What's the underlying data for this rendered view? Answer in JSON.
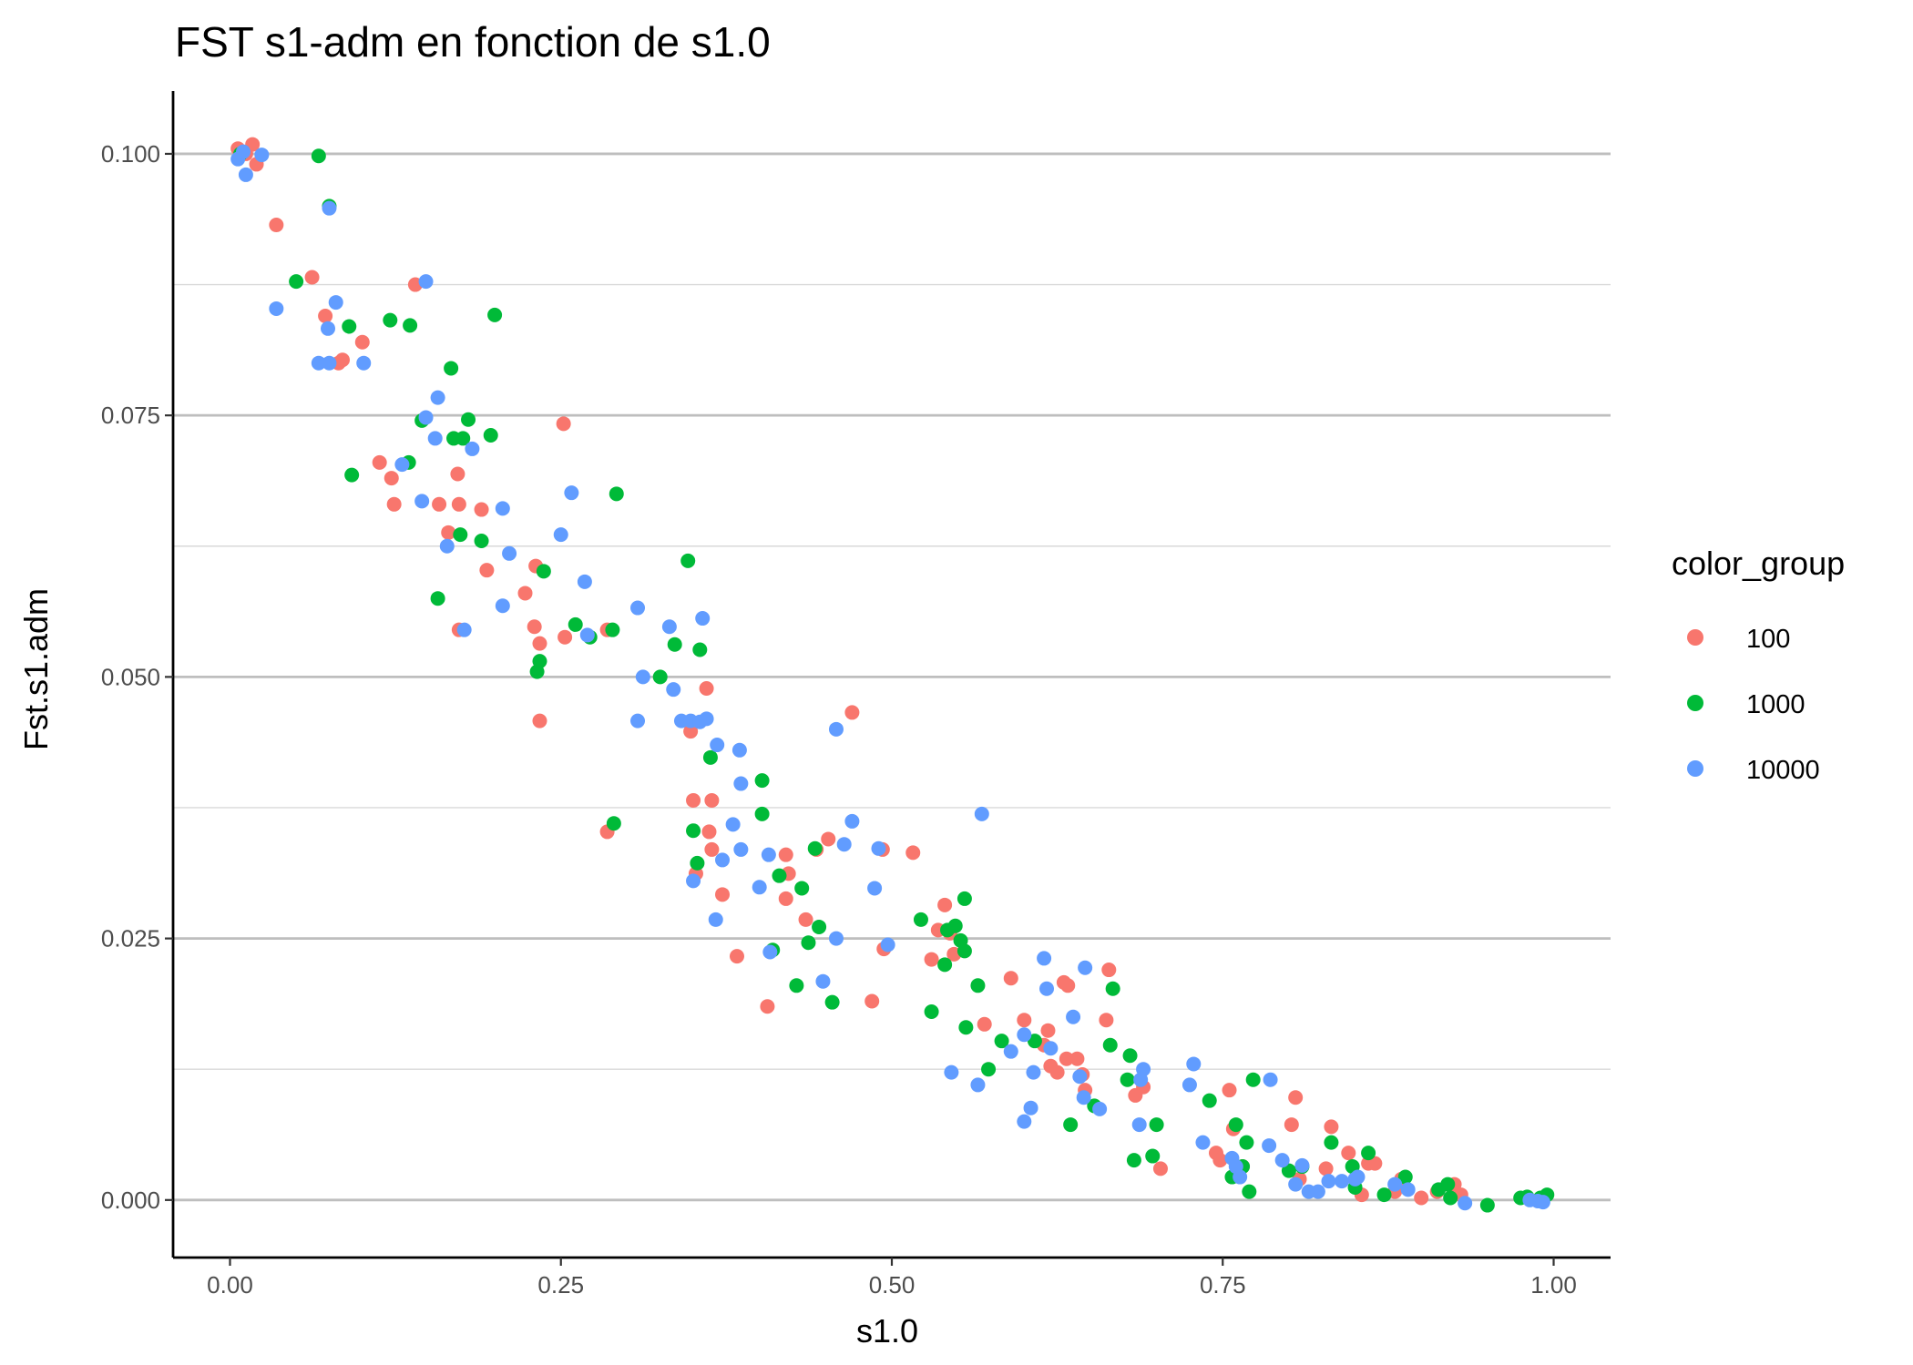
{
  "chart_data": {
    "type": "scatter",
    "title": "FST s1-adm en fonction de s1.0",
    "xlabel": "s1.0",
    "ylabel": "Fst.s1.adm",
    "xlim": [
      -0.043,
      1.043
    ],
    "ylim": [
      -0.0055,
      0.106
    ],
    "x_ticks": [
      0,
      0.25,
      0.5,
      0.75,
      1
    ],
    "x_tick_labels": [
      "0.00",
      "0.25",
      "0.50",
      "0.75",
      "1.00"
    ],
    "y_ticks": [
      0,
      0.025,
      0.05,
      0.075,
      0.1
    ],
    "y_tick_labels": [
      "0.000",
      "0.025",
      "0.050",
      "0.075",
      "0.100"
    ],
    "grid": "horizontal major and minor",
    "legend": {
      "title": "color_group",
      "placement": "right"
    },
    "series": [
      {
        "name": "100",
        "color": "#F8766D",
        "points": [
          [
            0.006,
            0.1005
          ],
          [
            0.012,
            0.1
          ],
          [
            0.017,
            0.1009
          ],
          [
            0.02,
            0.099
          ],
          [
            0.035,
            0.0932
          ],
          [
            0.062,
            0.0882
          ],
          [
            0.072,
            0.0845
          ],
          [
            0.082,
            0.08
          ],
          [
            0.085,
            0.0803
          ],
          [
            0.1,
            0.082
          ],
          [
            0.14,
            0.0875
          ],
          [
            0.113,
            0.0705
          ],
          [
            0.122,
            0.069
          ],
          [
            0.124,
            0.0665
          ],
          [
            0.158,
            0.0665
          ],
          [
            0.165,
            0.0638
          ],
          [
            0.172,
            0.0694
          ],
          [
            0.173,
            0.0665
          ],
          [
            0.173,
            0.0545
          ],
          [
            0.19,
            0.066
          ],
          [
            0.194,
            0.0602
          ],
          [
            0.223,
            0.058
          ],
          [
            0.23,
            0.0548
          ],
          [
            0.231,
            0.0606
          ],
          [
            0.234,
            0.0532
          ],
          [
            0.234,
            0.0458
          ],
          [
            0.252,
            0.0742
          ],
          [
            0.253,
            0.0538
          ],
          [
            0.285,
            0.0545
          ],
          [
            0.285,
            0.0352
          ],
          [
            0.348,
            0.0448
          ],
          [
            0.35,
            0.0382
          ],
          [
            0.352,
            0.0312
          ],
          [
            0.36,
            0.0489
          ],
          [
            0.362,
            0.0352
          ],
          [
            0.364,
            0.0382
          ],
          [
            0.364,
            0.0335
          ],
          [
            0.372,
            0.0292
          ],
          [
            0.383,
            0.0233
          ],
          [
            0.406,
            0.0185
          ],
          [
            0.42,
            0.033
          ],
          [
            0.42,
            0.0288
          ],
          [
            0.422,
            0.0312
          ],
          [
            0.435,
            0.0268
          ],
          [
            0.443,
            0.0335
          ],
          [
            0.452,
            0.0345
          ],
          [
            0.47,
            0.0466
          ],
          [
            0.485,
            0.019
          ],
          [
            0.493,
            0.0335
          ],
          [
            0.494,
            0.024
          ],
          [
            0.516,
            0.0332
          ],
          [
            0.53,
            0.023
          ],
          [
            0.535,
            0.0258
          ],
          [
            0.54,
            0.0282
          ],
          [
            0.544,
            0.0255
          ],
          [
            0.547,
            0.0235
          ],
          [
            0.57,
            0.0168
          ],
          [
            0.59,
            0.0212
          ],
          [
            0.6,
            0.0172
          ],
          [
            0.615,
            0.0148
          ],
          [
            0.618,
            0.0162
          ],
          [
            0.62,
            0.0128
          ],
          [
            0.625,
            0.0122
          ],
          [
            0.63,
            0.0208
          ],
          [
            0.632,
            0.0135
          ],
          [
            0.633,
            0.0205
          ],
          [
            0.64,
            0.0135
          ],
          [
            0.644,
            0.012
          ],
          [
            0.646,
            0.0105
          ],
          [
            0.662,
            0.0172
          ],
          [
            0.664,
            0.022
          ],
          [
            0.684,
            0.01
          ],
          [
            0.69,
            0.0108
          ],
          [
            0.703,
            0.003
          ],
          [
            0.745,
            0.0045
          ],
          [
            0.748,
            0.0038
          ],
          [
            0.755,
            0.0105
          ],
          [
            0.758,
            0.0068
          ],
          [
            0.765,
            0.0032
          ],
          [
            0.802,
            0.0072
          ],
          [
            0.805,
            0.0098
          ],
          [
            0.808,
            0.002
          ],
          [
            0.828,
            0.003
          ],
          [
            0.832,
            0.007
          ],
          [
            0.845,
            0.0045
          ],
          [
            0.855,
            0.0005
          ],
          [
            0.86,
            0.0035
          ],
          [
            0.865,
            0.0035
          ],
          [
            0.88,
            0.0008
          ],
          [
            0.885,
            0.002
          ],
          [
            0.9,
            0.0002
          ],
          [
            0.912,
            0.0008
          ],
          [
            0.925,
            0.0015
          ],
          [
            0.93,
            0.0005
          ]
        ]
      },
      {
        "name": "1000",
        "color": "#00BA38",
        "points": [
          [
            0.008,
            0.1
          ],
          [
            0.067,
            0.0998
          ],
          [
            0.075,
            0.095
          ],
          [
            0.05,
            0.0878
          ],
          [
            0.09,
            0.0835
          ],
          [
            0.121,
            0.0841
          ],
          [
            0.136,
            0.0836
          ],
          [
            0.2,
            0.0846
          ],
          [
            0.167,
            0.0795
          ],
          [
            0.092,
            0.0693
          ],
          [
            0.135,
            0.0705
          ],
          [
            0.145,
            0.0745
          ],
          [
            0.169,
            0.0728
          ],
          [
            0.176,
            0.0728
          ],
          [
            0.18,
            0.0746
          ],
          [
            0.197,
            0.0731
          ],
          [
            0.174,
            0.0636
          ],
          [
            0.19,
            0.063
          ],
          [
            0.157,
            0.0575
          ],
          [
            0.237,
            0.0601
          ],
          [
            0.232,
            0.0505
          ],
          [
            0.234,
            0.0515
          ],
          [
            0.261,
            0.055
          ],
          [
            0.272,
            0.0538
          ],
          [
            0.289,
            0.0545
          ],
          [
            0.292,
            0.0675
          ],
          [
            0.29,
            0.036
          ],
          [
            0.325,
            0.05
          ],
          [
            0.336,
            0.0531
          ],
          [
            0.346,
            0.0611
          ],
          [
            0.355,
            0.0526
          ],
          [
            0.363,
            0.0423
          ],
          [
            0.35,
            0.0353
          ],
          [
            0.353,
            0.0322
          ],
          [
            0.402,
            0.0401
          ],
          [
            0.402,
            0.0369
          ],
          [
            0.41,
            0.0239
          ],
          [
            0.415,
            0.031
          ],
          [
            0.428,
            0.0205
          ],
          [
            0.432,
            0.0298
          ],
          [
            0.437,
            0.0246
          ],
          [
            0.442,
            0.0336
          ],
          [
            0.445,
            0.0261
          ],
          [
            0.455,
            0.0189
          ],
          [
            0.522,
            0.0268
          ],
          [
            0.53,
            0.018
          ],
          [
            0.54,
            0.0225
          ],
          [
            0.542,
            0.0258
          ],
          [
            0.548,
            0.0262
          ],
          [
            0.552,
            0.0248
          ],
          [
            0.555,
            0.0288
          ],
          [
            0.555,
            0.0238
          ],
          [
            0.556,
            0.0165
          ],
          [
            0.565,
            0.0205
          ],
          [
            0.573,
            0.0125
          ],
          [
            0.583,
            0.0152
          ],
          [
            0.608,
            0.0152
          ],
          [
            0.635,
            0.0072
          ],
          [
            0.653,
            0.009
          ],
          [
            0.665,
            0.0148
          ],
          [
            0.667,
            0.0202
          ],
          [
            0.678,
            0.0115
          ],
          [
            0.68,
            0.0138
          ],
          [
            0.683,
            0.0038
          ],
          [
            0.697,
            0.0042
          ],
          [
            0.7,
            0.0072
          ],
          [
            0.74,
            0.0095
          ],
          [
            0.757,
            0.0022
          ],
          [
            0.76,
            0.0072
          ],
          [
            0.765,
            0.0032
          ],
          [
            0.768,
            0.0055
          ],
          [
            0.77,
            0.0008
          ],
          [
            0.773,
            0.0115
          ],
          [
            0.8,
            0.0028
          ],
          [
            0.81,
            0.0032
          ],
          [
            0.832,
            0.0055
          ],
          [
            0.848,
            0.0032
          ],
          [
            0.85,
            0.0012
          ],
          [
            0.86,
            0.0045
          ],
          [
            0.872,
            0.0005
          ],
          [
            0.888,
            0.0022
          ],
          [
            0.913,
            0.001
          ],
          [
            0.92,
            0.0015
          ],
          [
            0.922,
            0.0002
          ],
          [
            0.95,
            -0.0005
          ],
          [
            0.975,
            0.0002
          ],
          [
            0.98,
            0.0003
          ],
          [
            0.99,
            0.0002
          ],
          [
            0.995,
            0.0005
          ]
        ]
      },
      {
        "name": "10000",
        "color": "#619CFF",
        "points": [
          [
            0.006,
            0.0995
          ],
          [
            0.01,
            0.1002
          ],
          [
            0.012,
            0.098
          ],
          [
            0.024,
            0.0999
          ],
          [
            0.035,
            0.0852
          ],
          [
            0.075,
            0.0948
          ],
          [
            0.08,
            0.0858
          ],
          [
            0.074,
            0.0833
          ],
          [
            0.067,
            0.08
          ],
          [
            0.075,
            0.08
          ],
          [
            0.101,
            0.08
          ],
          [
            0.148,
            0.0878
          ],
          [
            0.13,
            0.0703
          ],
          [
            0.145,
            0.0668
          ],
          [
            0.148,
            0.0748
          ],
          [
            0.155,
            0.0728
          ],
          [
            0.157,
            0.0767
          ],
          [
            0.164,
            0.0625
          ],
          [
            0.177,
            0.0545
          ],
          [
            0.183,
            0.0718
          ],
          [
            0.206,
            0.0568
          ],
          [
            0.206,
            0.0661
          ],
          [
            0.211,
            0.0618
          ],
          [
            0.25,
            0.0636
          ],
          [
            0.258,
            0.0676
          ],
          [
            0.268,
            0.0591
          ],
          [
            0.27,
            0.054
          ],
          [
            0.308,
            0.0566
          ],
          [
            0.308,
            0.0458
          ],
          [
            0.312,
            0.05
          ],
          [
            0.332,
            0.0548
          ],
          [
            0.335,
            0.0488
          ],
          [
            0.341,
            0.0458
          ],
          [
            0.348,
            0.0458
          ],
          [
            0.355,
            0.0457
          ],
          [
            0.357,
            0.0556
          ],
          [
            0.36,
            0.046
          ],
          [
            0.35,
            0.0305
          ],
          [
            0.367,
            0.0268
          ],
          [
            0.368,
            0.0435
          ],
          [
            0.372,
            0.0325
          ],
          [
            0.38,
            0.0359
          ],
          [
            0.385,
            0.043
          ],
          [
            0.386,
            0.0335
          ],
          [
            0.386,
            0.0398
          ],
          [
            0.4,
            0.0299
          ],
          [
            0.407,
            0.033
          ],
          [
            0.408,
            0.0237
          ],
          [
            0.448,
            0.0209
          ],
          [
            0.458,
            0.045
          ],
          [
            0.458,
            0.025
          ],
          [
            0.464,
            0.034
          ],
          [
            0.47,
            0.0362
          ],
          [
            0.487,
            0.0298
          ],
          [
            0.49,
            0.0336
          ],
          [
            0.497,
            0.0244
          ],
          [
            0.545,
            0.0122
          ],
          [
            0.565,
            0.011
          ],
          [
            0.568,
            0.0369
          ],
          [
            0.59,
            0.0142
          ],
          [
            0.6,
            0.0075
          ],
          [
            0.6,
            0.0158
          ],
          [
            0.605,
            0.0088
          ],
          [
            0.607,
            0.0122
          ],
          [
            0.615,
            0.0231
          ],
          [
            0.617,
            0.0202
          ],
          [
            0.62,
            0.0145
          ],
          [
            0.637,
            0.0175
          ],
          [
            0.642,
            0.0118
          ],
          [
            0.645,
            0.0098
          ],
          [
            0.646,
            0.0222
          ],
          [
            0.657,
            0.0087
          ],
          [
            0.687,
            0.0072
          ],
          [
            0.688,
            0.0115
          ],
          [
            0.69,
            0.0125
          ],
          [
            0.725,
            0.011
          ],
          [
            0.728,
            0.013
          ],
          [
            0.735,
            0.0055
          ],
          [
            0.757,
            0.004
          ],
          [
            0.76,
            0.0032
          ],
          [
            0.763,
            0.0022
          ],
          [
            0.785,
            0.0052
          ],
          [
            0.786,
            0.0115
          ],
          [
            0.795,
            0.0038
          ],
          [
            0.805,
            0.0015
          ],
          [
            0.81,
            0.0033
          ],
          [
            0.815,
            0.0008
          ],
          [
            0.822,
            0.0008
          ],
          [
            0.83,
            0.0018
          ],
          [
            0.84,
            0.0018
          ],
          [
            0.85,
            0.002
          ],
          [
            0.852,
            0.0022
          ],
          [
            0.88,
            0.0015
          ],
          [
            0.89,
            0.001
          ],
          [
            0.933,
            -0.0003
          ],
          [
            0.982,
            0.0
          ],
          [
            0.988,
            -0.0001
          ],
          [
            0.992,
            -0.0002
          ]
        ]
      }
    ]
  }
}
